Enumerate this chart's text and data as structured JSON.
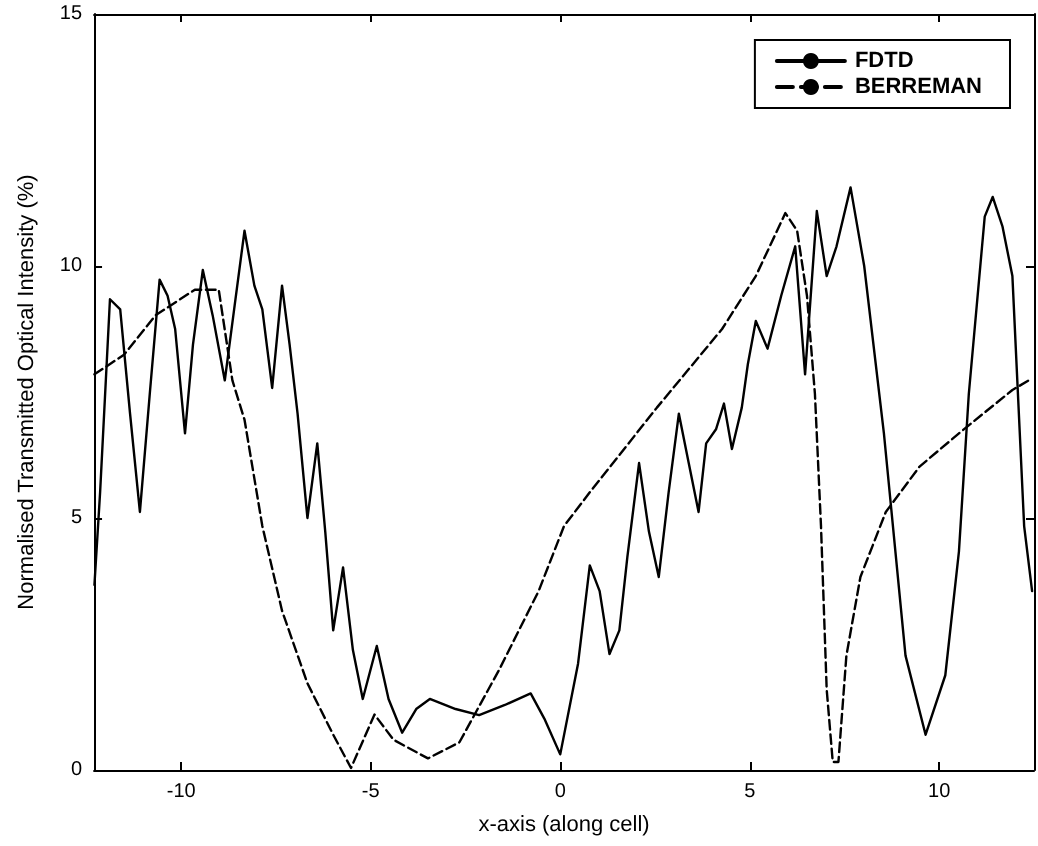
{
  "chart_data": {
    "type": "line",
    "xlabel": "x-axis (along cell)",
    "ylabel": "Normalised Transmitted Optical Intensity (%)",
    "xlim": [
      -12.3,
      12.5
    ],
    "ylim": [
      0,
      15
    ],
    "xticks": [
      -10,
      -5,
      0,
      5,
      10
    ],
    "yticks": [
      0,
      5,
      10,
      15
    ],
    "grid": false,
    "legend": "top right",
    "marker": "none",
    "series": [
      {
        "name": "FDTD",
        "color": "#000000",
        "line_style": "solid",
        "x": [
          -12.29,
          -12.14,
          -11.88,
          -11.61,
          -11.35,
          -11.09,
          -10.83,
          -10.57,
          -10.36,
          -10.16,
          -9.9,
          -9.69,
          -9.43,
          -9.17,
          -8.85,
          -8.59,
          -8.33,
          -8.07,
          -7.86,
          -7.6,
          -7.34,
          -7.14,
          -6.93,
          -6.67,
          -6.41,
          -6.2,
          -5.99,
          -5.73,
          -5.47,
          -5.21,
          -4.84,
          -4.53,
          -4.17,
          -3.8,
          -3.44,
          -2.76,
          -2.14,
          -1.46,
          -0.78,
          -0.42,
          0,
          0.47,
          0.78,
          1.04,
          1.3,
          1.56,
          1.77,
          2.08,
          2.34,
          2.6,
          2.86,
          3.13,
          3.39,
          3.65,
          3.85,
          4.11,
          4.32,
          4.53,
          4.79,
          4.95,
          5.16,
          5.47,
          5.83,
          6.2,
          6.46,
          6.77,
          7.03,
          7.29,
          7.66,
          8.02,
          8.54,
          9.11,
          9.64,
          10.16,
          10.52,
          10.78,
          11.2,
          11.41,
          11.67,
          11.93,
          12.24,
          12.45
        ],
        "values": [
          3.67,
          5.51,
          9.34,
          9.14,
          7.07,
          5.12,
          7.46,
          9.73,
          9.41,
          8.75,
          6.68,
          8.44,
          9.92,
          9.02,
          7.73,
          9.22,
          10.7,
          9.61,
          9.14,
          7.58,
          9.61,
          8.44,
          7.07,
          5.0,
          6.48,
          4.73,
          2.77,
          4.02,
          2.38,
          1.41,
          2.46,
          1.41,
          0.74,
          1.21,
          1.41,
          1.21,
          1.09,
          1.29,
          1.52,
          1.02,
          0.31,
          2.11,
          4.06,
          3.55,
          2.3,
          2.77,
          4.22,
          6.09,
          4.73,
          3.83,
          5.51,
          7.07,
          6.09,
          5.12,
          6.48,
          6.76,
          7.27,
          6.37,
          7.19,
          8.05,
          8.91,
          8.36,
          9.41,
          10.39,
          7.85,
          11.09,
          9.8,
          10.39,
          11.56,
          10.0,
          6.68,
          2.27,
          0.7,
          1.88,
          4.34,
          7.46,
          10.98,
          11.37,
          10.78,
          9.8,
          4.84,
          3.55
        ]
      },
      {
        "name": "BERREMAN",
        "color": "#000000",
        "line_style": "dashed",
        "x": [
          -12.29,
          -11.51,
          -10.68,
          -9.64,
          -9.01,
          -8.65,
          -8.33,
          -7.86,
          -7.34,
          -6.67,
          -5.99,
          -5.52,
          -4.9,
          -4.4,
          -3.49,
          -2.66,
          -1.61,
          -0.57,
          0.1,
          0.78,
          2.55,
          4.27,
          5.16,
          5.94,
          6.25,
          6.51,
          6.72,
          6.88,
          7.03,
          7.19,
          7.34,
          7.55,
          7.92,
          8.59,
          9.48,
          10.52,
          11.93,
          12.45
        ],
        "values": [
          7.85,
          8.24,
          9.02,
          9.53,
          9.53,
          7.73,
          6.95,
          4.84,
          3.16,
          1.72,
          0.7,
          0.04,
          1.1,
          0.6,
          0.23,
          0.55,
          1.99,
          3.55,
          4.84,
          5.51,
          7.19,
          8.75,
          9.8,
          11.05,
          10.7,
          9.41,
          7.46,
          4.84,
          1.6,
          0.16,
          0.16,
          2.27,
          3.83,
          5.12,
          6.02,
          6.68,
          7.54,
          7.77
        ]
      }
    ]
  }
}
